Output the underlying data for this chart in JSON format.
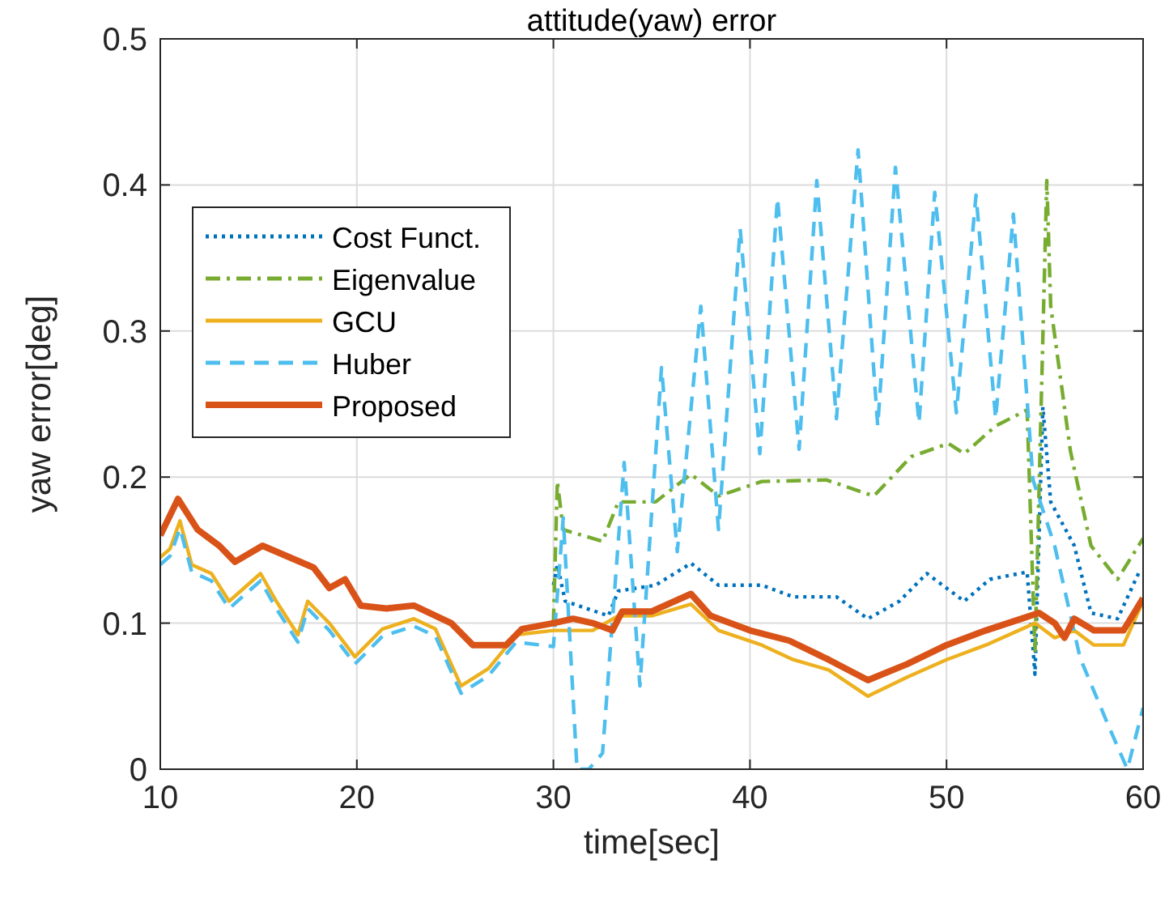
{
  "chart_data": {
    "type": "line",
    "title": "attitude(yaw) error",
    "xlabel": "time[sec]",
    "ylabel": "yaw error[deg]",
    "xlim": [
      10,
      60
    ],
    "xticks": [
      10,
      20,
      30,
      40,
      50,
      60
    ],
    "ylim": [
      0,
      0.5
    ],
    "yticks": [
      0,
      0.1,
      0.2,
      0.3,
      0.4,
      0.5
    ],
    "grid": true,
    "legend": "top left",
    "series": [
      {
        "name": "Cost Funct.",
        "color": "#0072bd",
        "line_style": "dotted",
        "x": [
          30,
          30.2,
          30.6,
          32.8,
          33.3,
          35.2,
          37,
          38.4,
          40.6,
          42.2,
          44.4,
          46,
          47.6,
          49,
          50.9,
          52.2,
          54.1,
          54.5,
          54.9,
          55.3,
          56.5,
          57.35,
          58.7,
          59.8,
          60
        ],
        "values": [
          0.126,
          0.14,
          0.115,
          0.105,
          0.122,
          0.126,
          0.141,
          0.126,
          0.126,
          0.118,
          0.118,
          0.103,
          0.115,
          0.134,
          0.115,
          0.13,
          0.135,
          0.065,
          0.248,
          0.183,
          0.153,
          0.107,
          0.103,
          0.135,
          0.135
        ]
      },
      {
        "name": "Eigenvalue",
        "color": "#77ac30",
        "line_style": "dashdot",
        "x": [
          30,
          30.2,
          30.5,
          32.5,
          33.3,
          35.2,
          37,
          38.4,
          40.6,
          43.9,
          46.3,
          48.2,
          50.1,
          50.9,
          52.5,
          54.1,
          54.5,
          55.1,
          55.3,
          56.3,
          57.35,
          58.7,
          60
        ],
        "values": [
          0.1,
          0.197,
          0.164,
          0.156,
          0.183,
          0.183,
          0.202,
          0.187,
          0.197,
          0.198,
          0.187,
          0.214,
          0.223,
          0.216,
          0.235,
          0.246,
          0.08,
          0.403,
          0.317,
          0.218,
          0.153,
          0.13,
          0.158
        ]
      },
      {
        "name": "GCU",
        "color": "#edb120",
        "line_style": "solid",
        "x": [
          10,
          10.5,
          11,
          11.6,
          12.6,
          13.5,
          15.1,
          15.9,
          17,
          17.5,
          18.6,
          19.9,
          21.3,
          22.9,
          24,
          25.3,
          26.7,
          28.1,
          30,
          32,
          33.3,
          35,
          37,
          38.4,
          40.6,
          42.2,
          44,
          46,
          48,
          50,
          52,
          54.5,
          55.5,
          56.5,
          57.5,
          59,
          60
        ],
        "values": [
          0.145,
          0.151,
          0.17,
          0.14,
          0.134,
          0.115,
          0.134,
          0.115,
          0.092,
          0.115,
          0.1,
          0.077,
          0.096,
          0.103,
          0.096,
          0.057,
          0.069,
          0.092,
          0.095,
          0.095,
          0.105,
          0.105,
          0.113,
          0.095,
          0.085,
          0.075,
          0.068,
          0.05,
          0.063,
          0.075,
          0.085,
          0.1,
          0.09,
          0.095,
          0.085,
          0.085,
          0.115
        ]
      },
      {
        "name": "Huber",
        "color": "#4dbeee",
        "line_style": "dashed",
        "x": [
          10,
          10.5,
          11,
          11.6,
          12.6,
          13.5,
          15.1,
          15.9,
          17,
          17.5,
          18.6,
          19.9,
          21.3,
          22.9,
          24,
          25.3,
          26.7,
          28.1,
          30,
          30.5,
          31.2,
          31.8,
          32.5,
          33.6,
          34.4,
          35.5,
          36.3,
          37.5,
          38.4,
          39.5,
          40.5,
          41.4,
          42.5,
          43.4,
          44.4,
          45.5,
          46.5,
          47.4,
          48.6,
          49.4,
          50.5,
          51.5,
          52.5,
          53.4,
          54.4,
          55.5,
          56.8,
          58.2,
          59.2,
          60
        ],
        "values": [
          0.14,
          0.146,
          0.165,
          0.135,
          0.129,
          0.11,
          0.129,
          0.11,
          0.087,
          0.11,
          0.095,
          0.072,
          0.091,
          0.098,
          0.091,
          0.052,
          0.064,
          0.087,
          0.084,
          0.172,
          0,
          0,
          0.011,
          0.21,
          0.057,
          0.275,
          0.149,
          0.317,
          0.164,
          0.37,
          0.216,
          0.391,
          0.219,
          0.403,
          0.24,
          0.424,
          0.235,
          0.412,
          0.237,
          0.395,
          0.244,
          0.393,
          0.24,
          0.38,
          0.198,
          0.153,
          0.076,
          0.031,
          0,
          0.042
        ]
      },
      {
        "name": "Proposed",
        "color": "#d95319",
        "line_style": "solid",
        "x": [
          10,
          10.9,
          11.9,
          13,
          13.8,
          15.2,
          17.8,
          18.6,
          19.4,
          20.2,
          21.5,
          22.9,
          24.8,
          25.9,
          27.6,
          28.4,
          30,
          31,
          32,
          33,
          33.5,
          35,
          37,
          38,
          40,
          42,
          44,
          46,
          48,
          50,
          52,
          54.7,
          55.5,
          56,
          56.5,
          57.5,
          59,
          60
        ],
        "values": [
          0.16,
          0.185,
          0.164,
          0.153,
          0.142,
          0.153,
          0.138,
          0.124,
          0.13,
          0.112,
          0.11,
          0.112,
          0.1,
          0.085,
          0.085,
          0.096,
          0.1,
          0.103,
          0.1,
          0.095,
          0.108,
          0.108,
          0.12,
          0.105,
          0.095,
          0.088,
          0.075,
          0.061,
          0.072,
          0.085,
          0.095,
          0.107,
          0.1,
          0.09,
          0.103,
          0.095,
          0.095,
          0.117
        ]
      }
    ]
  }
}
